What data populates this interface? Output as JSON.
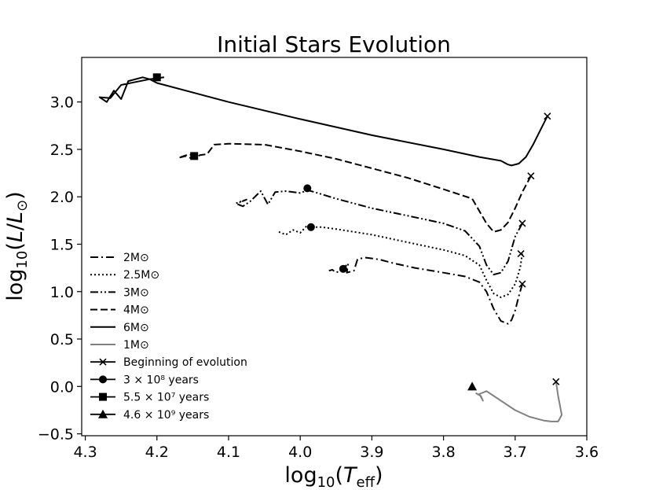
{
  "chart_data": {
    "type": "line",
    "title": "Initial Stars Evolution",
    "xlabel": "log10(Teff)",
    "ylabel": "log10(L/L⊙)",
    "xlim": [
      4.305,
      3.6
    ],
    "ylim": [
      -0.52,
      3.47
    ],
    "xticks": [
      "4.3",
      "4.2",
      "4.1",
      "4.0",
      "3.9",
      "3.8",
      "3.7",
      "3.6"
    ],
    "yticks": [
      "−0.5",
      "0.0",
      "0.5",
      "1.0",
      "1.5",
      "2.0",
      "2.5",
      "3.0"
    ],
    "legend_position": "lower-left",
    "series": [
      {
        "name": "2M⊙",
        "style": "dashdot",
        "color": "#000000",
        "x": [
          3.69,
          3.695,
          3.7,
          3.705,
          3.71,
          3.72,
          3.73,
          3.74,
          3.75,
          3.77,
          3.8,
          3.84,
          3.87,
          3.89,
          3.91,
          3.92,
          3.925,
          3.935,
          3.933,
          3.94,
          3.95,
          3.955,
          3.96
        ],
        "y": [
          1.08,
          0.95,
          0.8,
          0.7,
          0.66,
          0.69,
          0.82,
          1.0,
          1.1,
          1.16,
          1.2,
          1.25,
          1.3,
          1.34,
          1.36,
          1.34,
          1.22,
          1.2,
          1.3,
          1.24,
          1.2,
          1.23,
          1.22
        ]
      },
      {
        "name": "2.5M⊙",
        "style": "dotted",
        "color": "#000000",
        "x": [
          3.69,
          3.693,
          3.7,
          3.71,
          3.72,
          3.73,
          3.74,
          3.75,
          3.77,
          3.8,
          3.85,
          3.9,
          3.95,
          3.97,
          3.98,
          3.985,
          3.99,
          4.0,
          4.01,
          4.02,
          4.03
        ],
        "y": [
          1.4,
          1.25,
          1.08,
          0.97,
          0.94,
          0.98,
          1.12,
          1.28,
          1.38,
          1.44,
          1.52,
          1.6,
          1.66,
          1.68,
          1.68,
          1.7,
          1.7,
          1.62,
          1.65,
          1.6,
          1.63
        ]
      },
      {
        "name": "3M⊙",
        "style": "dashdotdot",
        "color": "#000000",
        "x": [
          3.69,
          3.7,
          3.71,
          3.72,
          3.73,
          3.74,
          3.75,
          3.77,
          3.8,
          3.85,
          3.9,
          3.95,
          3.98,
          3.99,
          4.0,
          4.02,
          4.035,
          4.045,
          4.055,
          4.07,
          4.08,
          4.09,
          4.075,
          4.085
        ],
        "y": [
          1.72,
          1.58,
          1.32,
          1.2,
          1.18,
          1.28,
          1.48,
          1.64,
          1.72,
          1.8,
          1.88,
          1.98,
          2.05,
          2.07,
          2.04,
          2.06,
          2.05,
          1.92,
          2.06,
          1.95,
          1.9,
          1.93,
          1.97,
          1.94
        ]
      },
      {
        "name": "4M⊙",
        "style": "dashed",
        "color": "#000000",
        "x": [
          3.678,
          3.69,
          3.7,
          3.71,
          3.72,
          3.73,
          3.74,
          3.76,
          3.8,
          3.85,
          3.9,
          3.95,
          4.0,
          4.05,
          4.1,
          4.12,
          4.13,
          4.14,
          4.15,
          4.16,
          4.17,
          4.155,
          4.145
        ],
        "y": [
          2.22,
          2.05,
          1.88,
          1.73,
          1.65,
          1.63,
          1.72,
          1.98,
          2.08,
          2.2,
          2.3,
          2.4,
          2.48,
          2.55,
          2.56,
          2.55,
          2.45,
          2.44,
          2.4,
          2.43,
          2.41,
          2.45,
          2.42
        ]
      },
      {
        "name": "6M⊙",
        "style": "solid",
        "color": "#000000",
        "x": [
          3.655,
          3.665,
          3.675,
          3.685,
          3.695,
          3.705,
          3.71,
          3.72,
          3.75,
          3.8,
          3.9,
          4.0,
          4.1,
          4.2,
          4.21,
          4.22,
          4.24,
          4.25,
          4.26,
          4.27,
          4.28,
          4.265,
          4.25,
          4.23,
          4.21,
          4.19
        ],
        "y": [
          2.85,
          2.7,
          2.55,
          2.42,
          2.35,
          2.33,
          2.34,
          2.38,
          2.42,
          2.5,
          2.65,
          2.82,
          3.0,
          3.2,
          3.24,
          3.26,
          3.22,
          3.03,
          3.12,
          3.0,
          3.05,
          3.04,
          3.18,
          3.21,
          3.24,
          3.26
        ]
      },
      {
        "name": "1M⊙",
        "style": "solid",
        "color": "#808080",
        "x": [
          3.643,
          3.64,
          3.635,
          3.64,
          3.65,
          3.66,
          3.67,
          3.68,
          3.7,
          3.72,
          3.74,
          3.75,
          3.745,
          3.748,
          3.755
        ],
        "y": [
          0.05,
          -0.1,
          -0.3,
          -0.37,
          -0.37,
          -0.36,
          -0.34,
          -0.32,
          -0.25,
          -0.15,
          -0.05,
          -0.08,
          -0.15,
          -0.1,
          -0.07
        ]
      }
    ],
    "markers": [
      {
        "name": "Beginning of evolution",
        "symbol": "x",
        "points": [
          [
            3.655,
            2.85
          ],
          [
            3.678,
            2.22
          ],
          [
            3.69,
            1.72
          ],
          [
            3.692,
            1.4
          ],
          [
            3.69,
            1.08
          ],
          [
            3.643,
            0.05
          ]
        ]
      },
      {
        "name": "3 × 10⁸ years",
        "symbol": "circle",
        "points": [
          [
            3.99,
            2.09
          ],
          [
            3.985,
            1.68
          ],
          [
            3.94,
            1.24
          ]
        ]
      },
      {
        "name": "5.5 × 10⁷ years",
        "symbol": "square",
        "points": [
          [
            4.2,
            3.26
          ],
          [
            4.148,
            2.43
          ]
        ]
      },
      {
        "name": "4.6 × 10⁹ years",
        "symbol": "triangle",
        "points": [
          [
            3.76,
            0.0
          ]
        ]
      }
    ],
    "legend": [
      {
        "label": "2M⊙",
        "kind": "line",
        "style": "dashdot",
        "color": "#000000"
      },
      {
        "label": "2.5M⊙",
        "kind": "line",
        "style": "dotted",
        "color": "#000000"
      },
      {
        "label": "3M⊙",
        "kind": "line",
        "style": "dashdotdot",
        "color": "#000000"
      },
      {
        "label": "4M⊙",
        "kind": "line",
        "style": "dashed",
        "color": "#000000"
      },
      {
        "label": "6M⊙",
        "kind": "line",
        "style": "solid",
        "color": "#000000"
      },
      {
        "label": "1M⊙",
        "kind": "line",
        "style": "solid",
        "color": "#808080"
      },
      {
        "label": "Beginning of evolution",
        "kind": "marker",
        "symbol": "x"
      },
      {
        "label": "3 × 10⁸ years",
        "kind": "marker",
        "symbol": "circle"
      },
      {
        "label": "5.5 × 10⁷ years",
        "kind": "marker",
        "symbol": "square"
      },
      {
        "label": "4.6 × 10⁹ years",
        "kind": "marker",
        "symbol": "triangle"
      }
    ]
  }
}
